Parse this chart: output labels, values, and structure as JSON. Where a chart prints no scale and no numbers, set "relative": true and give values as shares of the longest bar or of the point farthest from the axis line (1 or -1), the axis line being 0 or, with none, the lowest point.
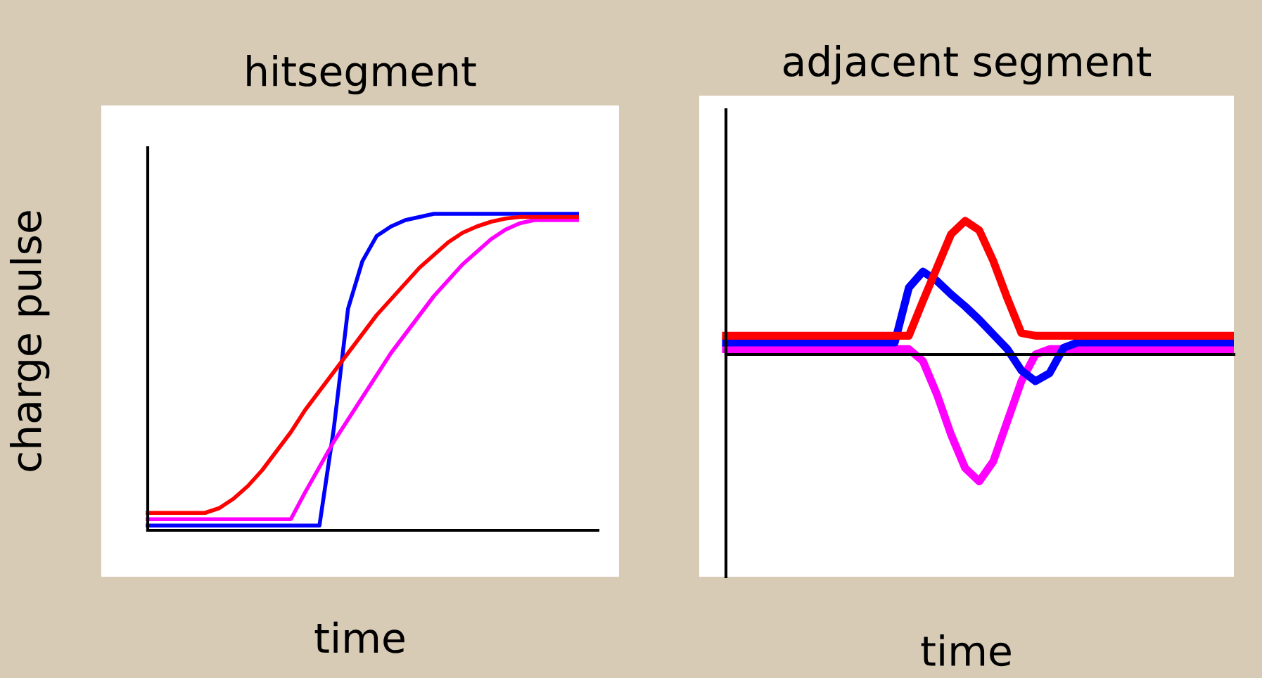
{
  "chart_data": [
    {
      "type": "line",
      "title": "hitsegment",
      "xlabel": "time",
      "ylabel": "charge pulse",
      "relative": true,
      "categories": [
        null,
        null,
        null,
        null,
        null,
        null,
        null,
        null,
        null,
        null,
        null,
        null,
        null,
        null,
        null,
        null,
        null,
        null,
        null,
        null,
        null,
        null,
        null,
        null,
        null,
        null,
        null,
        null,
        null,
        null,
        null
      ],
      "series": [
        {
          "color": "#0000ff",
          "values": [
            0.015,
            0.015,
            0.015,
            0.015,
            0.015,
            0.015,
            0.015,
            0.015,
            0.015,
            0.015,
            0.015,
            0.015,
            0.015,
            0.32,
            0.7,
            0.85,
            0.93,
            0.96,
            0.98,
            0.99,
            1.0,
            1.0,
            1.0,
            1.0,
            1.0,
            1.0,
            1.0,
            1.0,
            1.0,
            1.0,
            1.0
          ]
        },
        {
          "color": "#ff00ff",
          "values": [
            0.035,
            0.035,
            0.035,
            0.035,
            0.035,
            0.035,
            0.035,
            0.035,
            0.035,
            0.035,
            0.035,
            0.12,
            0.2,
            0.28,
            0.35,
            0.42,
            0.49,
            0.56,
            0.62,
            0.68,
            0.74,
            0.79,
            0.84,
            0.88,
            0.92,
            0.95,
            0.97,
            0.98,
            0.98,
            0.98,
            0.98
          ]
        },
        {
          "color": "#ff0000",
          "values": [
            0.055,
            0.055,
            0.055,
            0.055,
            0.055,
            0.07,
            0.1,
            0.14,
            0.19,
            0.25,
            0.31,
            0.38,
            0.44,
            0.5,
            0.56,
            0.62,
            0.68,
            0.73,
            0.78,
            0.83,
            0.87,
            0.91,
            0.94,
            0.96,
            0.975,
            0.985,
            0.99,
            0.99,
            0.99,
            0.99,
            0.99
          ]
        }
      ]
    },
    {
      "type": "line",
      "title": "adjacent segment",
      "xlabel": "time",
      "relative": true,
      "categories": [
        null,
        null,
        null,
        null,
        null,
        null,
        null,
        null,
        null,
        null,
        null,
        null,
        null,
        null,
        null,
        null,
        null,
        null,
        null,
        null,
        null,
        null,
        null,
        null,
        null,
        null,
        null,
        null,
        null,
        null,
        null,
        null,
        null,
        null,
        null,
        null,
        null
      ],
      "series": [
        {
          "color": "#ff00ff",
          "values": [
            0.04,
            0.04,
            0.04,
            0.04,
            0.04,
            0.04,
            0.04,
            0.04,
            0.04,
            0.04,
            0.04,
            0.04,
            0.04,
            0.04,
            -0.05,
            -0.3,
            -0.6,
            -0.85,
            -0.95,
            -0.8,
            -0.5,
            -0.2,
            0.0,
            0.04,
            0.04,
            0.04,
            0.04,
            0.04,
            0.04,
            0.04,
            0.04,
            0.04,
            0.04,
            0.04,
            0.04,
            0.04,
            0.04
          ]
        },
        {
          "color": "#0000ff",
          "values": [
            0.09,
            0.09,
            0.09,
            0.09,
            0.09,
            0.09,
            0.09,
            0.09,
            0.09,
            0.09,
            0.09,
            0.09,
            0.09,
            0.5,
            0.62,
            0.55,
            0.45,
            0.36,
            0.26,
            0.15,
            0.04,
            -0.12,
            -0.2,
            -0.14,
            0.05,
            0.09,
            0.09,
            0.09,
            0.09,
            0.09,
            0.09,
            0.09,
            0.09,
            0.09,
            0.09,
            0.09,
            0.09
          ]
        },
        {
          "color": "#ff0000",
          "values": [
            0.14,
            0.14,
            0.14,
            0.14,
            0.14,
            0.14,
            0.14,
            0.14,
            0.14,
            0.14,
            0.14,
            0.14,
            0.14,
            0.14,
            0.4,
            0.65,
            0.9,
            1.0,
            0.93,
            0.7,
            0.42,
            0.16,
            0.14,
            0.14,
            0.14,
            0.14,
            0.14,
            0.14,
            0.14,
            0.14,
            0.14,
            0.14,
            0.14,
            0.14,
            0.14,
            0.14,
            0.14
          ]
        }
      ]
    }
  ]
}
